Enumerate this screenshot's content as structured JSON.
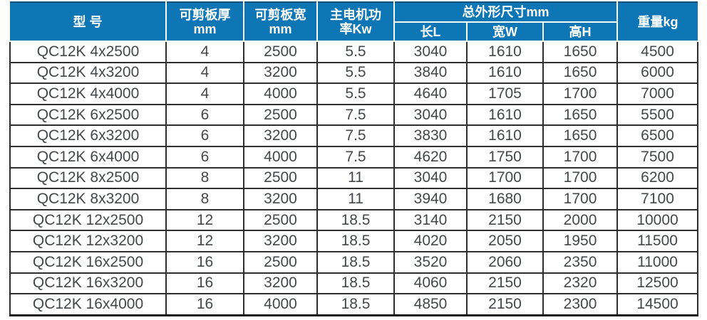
{
  "table": {
    "title_hint": "QC12K shearing machine specification table",
    "header": {
      "model": "型 号",
      "shear_thickness": {
        "line1": "可剪板厚",
        "line2": "mm"
      },
      "shear_width": {
        "line1": "可剪板宽",
        "line2": "mm"
      },
      "motor_power": {
        "line1": "主电机功",
        "line2": "率Kw"
      },
      "dimensions": {
        "group": "总外形尺寸mm",
        "length": "长L",
        "width": "宽W",
        "height": "高H"
      },
      "weight": "重量kg"
    },
    "rows": [
      [
        "QC12K 4x2500",
        "4",
        "2500",
        "5.5",
        "3040",
        "1610",
        "1650",
        "4500"
      ],
      [
        "QC12K 4x3200",
        "4",
        "3200",
        "5.5",
        "3840",
        "1610",
        "1650",
        "6000"
      ],
      [
        "QC12K 4x4000",
        "4",
        "4000",
        "5.5",
        "4640",
        "1705",
        "1700",
        "7000"
      ],
      [
        "QC12K 6x2500",
        "6",
        "2500",
        "7.5",
        "3040",
        "1610",
        "1650",
        "5500"
      ],
      [
        "QC12K 6x3200",
        "6",
        "3200",
        "7.5",
        "3830",
        "1610",
        "1650",
        "6500"
      ],
      [
        "QC12K 6x4000",
        "6",
        "4000",
        "7.5",
        "4620",
        "1750",
        "1700",
        "7500"
      ],
      [
        "QC12K 8x2500",
        "8",
        "2500",
        "11",
        "3040",
        "1700",
        "1700",
        "6200"
      ],
      [
        "QC12K 8x3200",
        "8",
        "3200",
        "11",
        "3940",
        "1680",
        "1700",
        "7100"
      ],
      [
        "QC12K 12x2500",
        "12",
        "2500",
        "18.5",
        "3140",
        "2150",
        "2000",
        "10000"
      ],
      [
        "QC12K 12x3200",
        "12",
        "3200",
        "18.5",
        "4020",
        "2050",
        "1950",
        "11500"
      ],
      [
        "QC12K 16x2500",
        "16",
        "2500",
        "18.5",
        "3520",
        "2060",
        "2350",
        "11000"
      ],
      [
        "QC12K 16x3200",
        "16",
        "3200",
        "18.5",
        "4060",
        "2150",
        "2320",
        "12500"
      ],
      [
        "QC12K 16x4000",
        "16",
        "4000",
        "18.5",
        "4850",
        "2150",
        "2300",
        "14500"
      ]
    ],
    "colors": {
      "header_bg": "#0e76b4",
      "header_top_line": "#14517c",
      "header_text": "#ffffff",
      "header_divider": "#ffffff",
      "grid_line": "#2e2e2e",
      "bottom_line": "#141414",
      "cell_text": "#44474a",
      "page_bg": "#ffffff"
    }
  }
}
